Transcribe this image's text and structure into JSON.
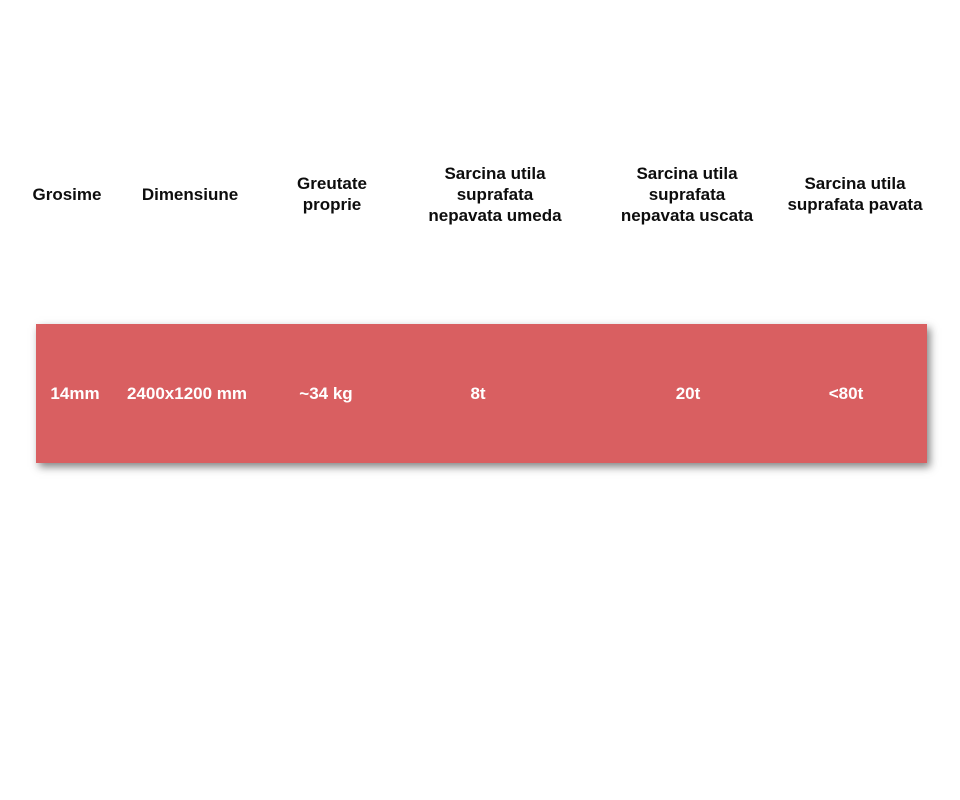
{
  "table": {
    "columns": [
      {
        "label": "Grosime"
      },
      {
        "label": "Dimensiune"
      },
      {
        "label": "Greutate\nproprie"
      },
      {
        "label": "Sarcina utila\nsuprafata\nnepavata umeda"
      },
      {
        "label": "Sarcina utila\nsuprafata\nnepavata uscata"
      },
      {
        "label": "Sarcina utila\nsuprafata pavata"
      }
    ],
    "rows": [
      {
        "cells": [
          "14mm",
          "2400x1200 mm",
          "~34 kg",
          "8t",
          "20t",
          "<80t"
        ]
      }
    ]
  },
  "colors": {
    "row_background": "#d95f61",
    "row_text": "#ffffff",
    "header_text": "#0d0d0d"
  }
}
